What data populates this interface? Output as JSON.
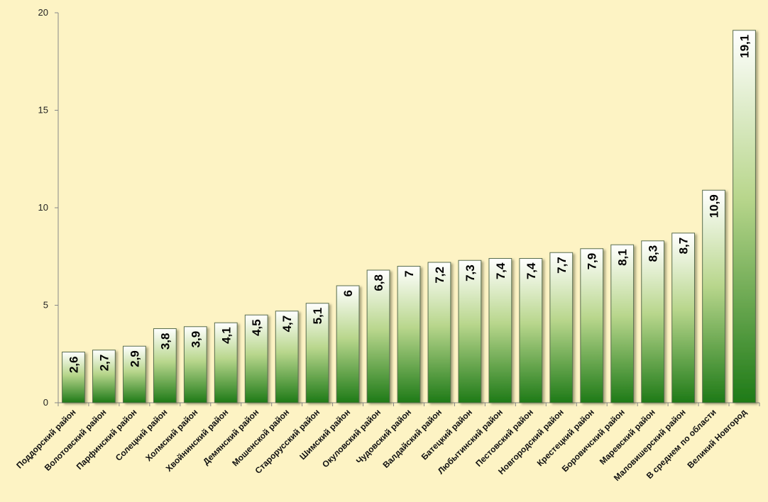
{
  "chart_data": {
    "type": "bar",
    "title": "",
    "xlabel": "",
    "ylabel": "",
    "ylim": [
      0,
      20
    ],
    "yticks": [
      0,
      5,
      10,
      15,
      20
    ],
    "grid": false,
    "colors": {
      "bar_top": "#ffffff",
      "bar_bottom": "#1e7a17",
      "bar_border": "#5a6e50",
      "axis": "#888888",
      "background": "#fdf3c4"
    },
    "categories": [
      "Поддорский район",
      "Волотовский  район",
      "Парфинский  район",
      "Солецкий район",
      "Холмский район",
      "Хвойнинский  район",
      "Демянский район",
      "Мошенской район",
      "Старорусский  район",
      "Шимский район",
      "Окуловский  район",
      "Чудовский район",
      "Валдайский  район",
      "Батецкий район",
      "Любытинский  район",
      "Пестовский  район",
      "Новгородский район",
      "Крестецкий район",
      "Боровичский  район",
      "Маревский  район",
      "Маловишерский  район",
      "В среднем по области",
      "Великий Новгород"
    ],
    "values": [
      2.6,
      2.7,
      2.9,
      3.8,
      3.9,
      4.1,
      4.5,
      4.7,
      5.1,
      6,
      6.8,
      7,
      7.2,
      7.3,
      7.4,
      7.4,
      7.7,
      7.9,
      8.1,
      8.3,
      8.7,
      10.9,
      19.1
    ],
    "data_labels": [
      "2,6",
      "2,7",
      "2,9",
      "3,8",
      "3,9",
      "4,1",
      "4,5",
      "4,7",
      "5,1",
      "6",
      "6,8",
      "7",
      "7,2",
      "7,3",
      "7,4",
      "7,4",
      "7,7",
      "7,9",
      "8,1",
      "8,3",
      "8,7",
      "10,9",
      "19,1"
    ]
  }
}
